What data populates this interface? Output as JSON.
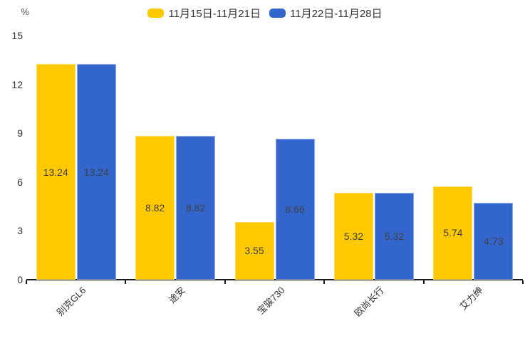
{
  "chart_data": {
    "type": "bar",
    "title": "",
    "unit_label": "%",
    "categories": [
      "别克GL6",
      "途安",
      "宝骏730",
      "欧尚长行",
      "艾力绅"
    ],
    "series": [
      {
        "name": "11月15日-11月21日",
        "color": "#FFC900",
        "border_color": "#FFD95A",
        "values": [
          13.24,
          8.82,
          3.55,
          5.32,
          5.74
        ]
      },
      {
        "name": "11月22日-11月28日",
        "color": "#3366CC",
        "border_color": "#8FA9E5",
        "values": [
          13.24,
          8.82,
          8.66,
          5.32,
          4.73
        ]
      }
    ],
    "ylim": [
      0,
      15
    ],
    "yticks": [
      0,
      3,
      6,
      9,
      12,
      15
    ],
    "grid": false,
    "legend_position": "top",
    "value_labels": "inside-center",
    "xlabel": "",
    "ylabel": "%"
  }
}
